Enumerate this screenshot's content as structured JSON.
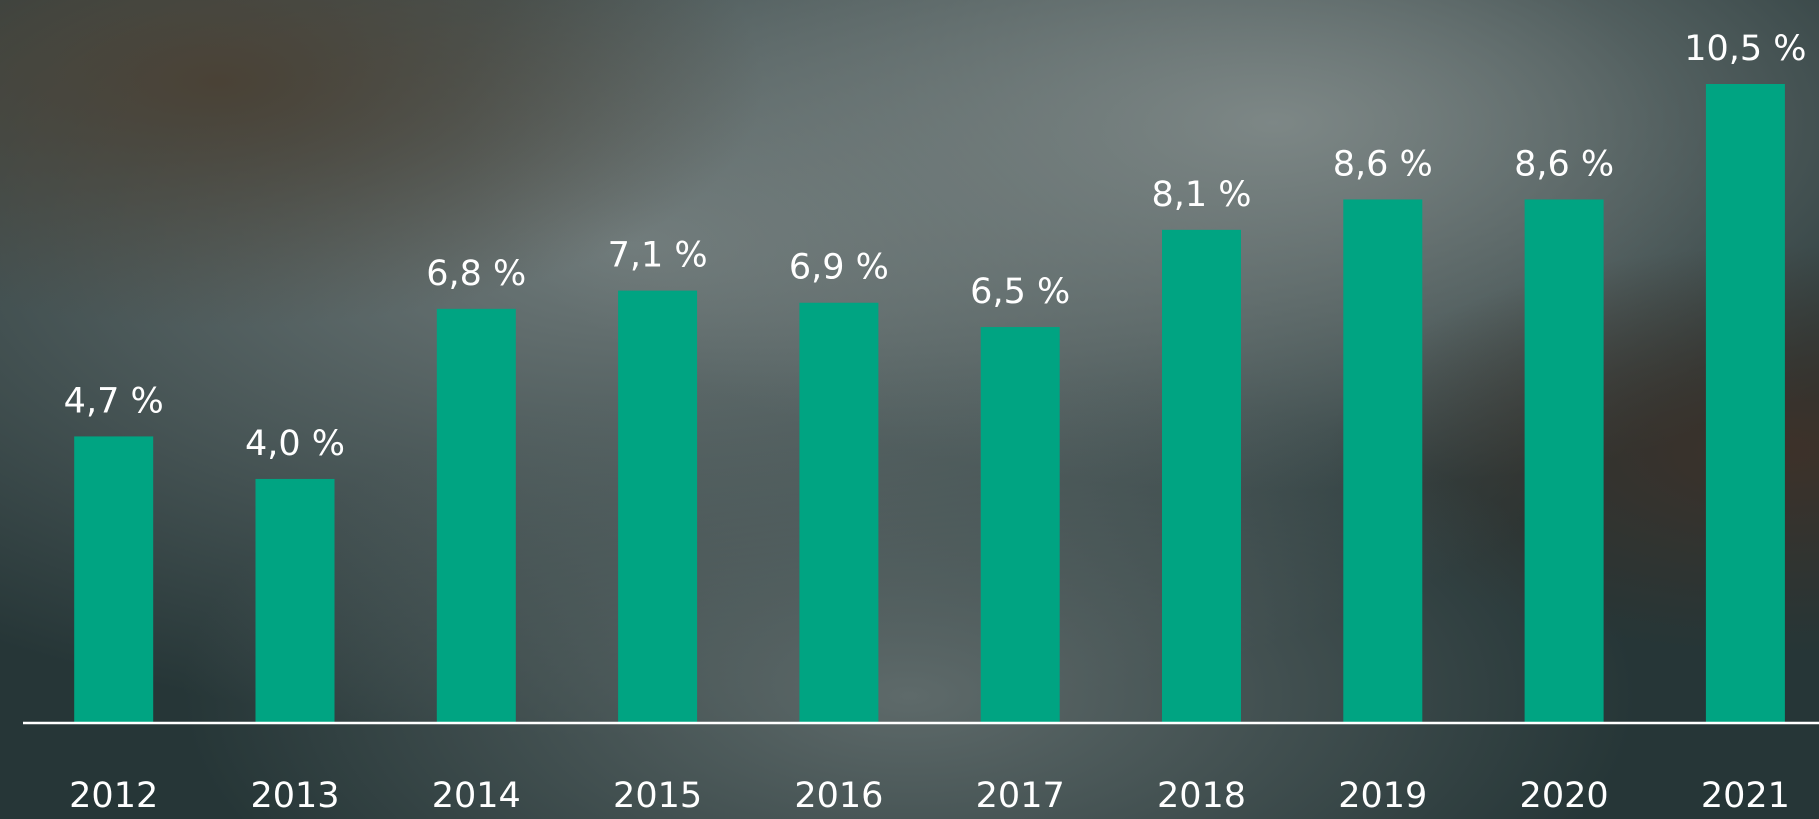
{
  "chart_data": {
    "type": "bar",
    "categories": [
      "2012",
      "2013",
      "2014",
      "2015",
      "2016",
      "2017",
      "2018",
      "2019",
      "2020",
      "2021"
    ],
    "values": [
      4.7,
      4.0,
      6.8,
      7.1,
      6.9,
      6.5,
      8.1,
      8.6,
      8.6,
      10.5
    ],
    "value_labels": [
      "4,7 %",
      "4,0 %",
      "6,8 %",
      "7,1 %",
      "6,9 %",
      "6,5 %",
      "8,1 %",
      "8,6 %",
      "8,6 %",
      "10,5 %"
    ],
    "color": "#00a482"
  }
}
